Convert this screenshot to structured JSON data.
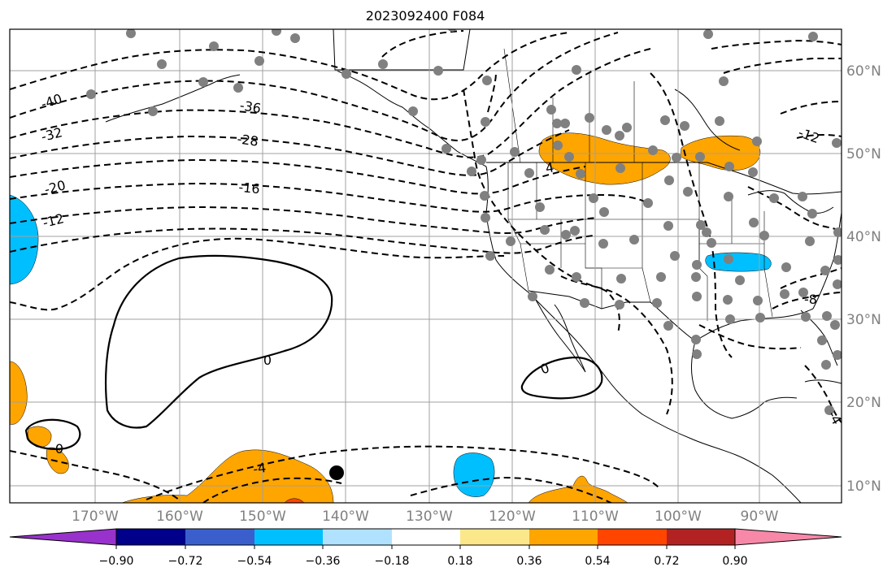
{
  "title": "2023092400 F084",
  "axes": {
    "lon_labels": [
      "170°W",
      "160°W",
      "150°W",
      "140°W",
      "130°W",
      "120°W",
      "110°W",
      "100°W",
      "90°W"
    ],
    "lat_labels": [
      "60°N",
      "50°N",
      "40°N",
      "30°N",
      "20°N",
      "10°N"
    ]
  },
  "contour_labels": [
    "-40",
    "-36",
    "-32",
    "-28",
    "-20",
    "-16",
    "-12",
    "-4",
    "-12",
    "-8",
    "-4",
    "0",
    "0",
    "0",
    "4"
  ],
  "colorbar": {
    "ticks": [
      "−0.90",
      "−0.72",
      "−0.54",
      "−0.36",
      "−0.18",
      "0.18",
      "0.36",
      "0.54",
      "0.72",
      "0.90"
    ],
    "colors": [
      "#9932cc",
      "#00008b",
      "#3a5fcd",
      "#00bfff",
      "#b0e2ff",
      "#ffffff",
      "#fbe88a",
      "#ffa500",
      "#ff4500",
      "#b22222",
      "#f788a8"
    ]
  },
  "map_colors": {
    "negative": "#00bfff",
    "positive": "#ffa500",
    "strong_positive": "#ff4500",
    "station": "#808080",
    "marker": "#000000"
  }
}
